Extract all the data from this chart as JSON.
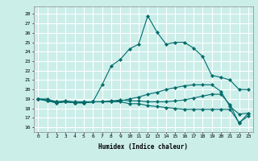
{
  "xlabel": "Humidex (Indice chaleur)",
  "background_color": "#cbeee9",
  "grid_color": "#ffffff",
  "line_color": "#006b6b",
  "xlim": [
    -0.5,
    23.5
  ],
  "ylim": [
    15.5,
    28.8
  ],
  "yticks": [
    16,
    17,
    18,
    19,
    20,
    21,
    22,
    23,
    24,
    25,
    26,
    27,
    28
  ],
  "xticks": [
    0,
    1,
    2,
    3,
    4,
    5,
    6,
    7,
    8,
    9,
    10,
    11,
    12,
    13,
    14,
    15,
    16,
    17,
    18,
    19,
    20,
    21,
    22,
    23
  ],
  "xtick_labels": [
    "0",
    "1",
    "2",
    "3",
    "4",
    "5",
    "6",
    "7",
    "8",
    "9",
    "10",
    "11",
    "12",
    "13",
    "14",
    "15",
    "16",
    "17",
    "18",
    "19",
    "20",
    "21",
    "22",
    "23"
  ],
  "lines": [
    {
      "x": [
        0,
        1,
        2,
        3,
        4,
        5,
        6,
        7,
        8,
        9,
        10,
        11,
        12,
        13,
        14,
        15,
        16,
        17,
        18,
        19,
        20,
        21,
        22,
        23
      ],
      "y": [
        19,
        19,
        18.7,
        18.8,
        18.7,
        18.7,
        18.7,
        20.5,
        22.5,
        23.2,
        24.3,
        24.8,
        27.8,
        26.1,
        24.8,
        25.0,
        25.0,
        24.4,
        23.5,
        21.5,
        21.3,
        21.0,
        20.0,
        20.0
      ]
    },
    {
      "x": [
        0,
        1,
        2,
        3,
        4,
        5,
        6,
        7,
        8,
        9,
        10,
        11,
        12,
        13,
        14,
        15,
        16,
        17,
        18,
        19,
        20,
        21,
        22,
        23
      ],
      "y": [
        19,
        18.8,
        18.6,
        18.7,
        18.6,
        18.6,
        18.7,
        18.7,
        18.7,
        18.8,
        19.0,
        19.2,
        19.5,
        19.7,
        20.0,
        20.2,
        20.4,
        20.5,
        20.5,
        20.5,
        19.8,
        18.2,
        17.4,
        17.5
      ]
    },
    {
      "x": [
        0,
        1,
        2,
        3,
        4,
        5,
        6,
        7,
        8,
        9,
        10,
        11,
        12,
        13,
        14,
        15,
        16,
        17,
        18,
        19,
        20,
        21,
        22,
        23
      ],
      "y": [
        19,
        18.9,
        18.7,
        18.7,
        18.6,
        18.6,
        18.7,
        18.7,
        18.8,
        18.9,
        18.8,
        18.8,
        18.7,
        18.7,
        18.7,
        18.8,
        18.9,
        19.1,
        19.3,
        19.5,
        19.5,
        18.4,
        16.4,
        17.5
      ]
    },
    {
      "x": [
        0,
        1,
        2,
        3,
        4,
        5,
        6,
        7,
        8,
        9,
        10,
        11,
        12,
        13,
        14,
        15,
        16,
        17,
        18,
        19,
        20,
        21,
        22,
        23
      ],
      "y": [
        19,
        18.8,
        18.6,
        18.7,
        18.6,
        18.6,
        18.7,
        18.7,
        18.7,
        18.7,
        18.5,
        18.5,
        18.3,
        18.2,
        18.1,
        18.0,
        17.9,
        17.9,
        17.9,
        17.9,
        17.9,
        17.9,
        16.5,
        17.2
      ]
    }
  ]
}
